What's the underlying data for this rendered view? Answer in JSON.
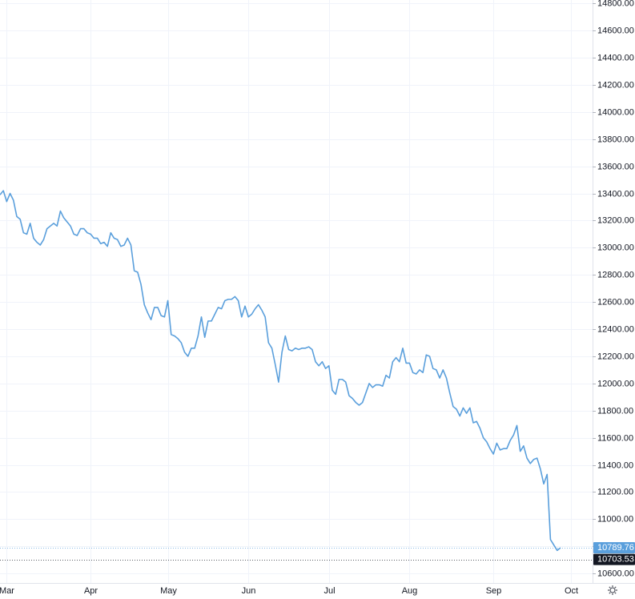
{
  "chart_data": {
    "type": "line",
    "categories": [
      null,
      null,
      "Mar",
      null,
      null,
      null,
      null,
      null,
      null,
      null,
      null,
      null,
      null,
      null,
      null,
      null,
      null,
      null,
      null,
      null,
      null,
      null,
      null,
      null,
      null,
      null,
      null,
      "Apr",
      null,
      null,
      null,
      null,
      null,
      null,
      null,
      null,
      null,
      null,
      null,
      null,
      null,
      null,
      null,
      null,
      null,
      null,
      null,
      null,
      null,
      null,
      "May",
      null,
      null,
      null,
      null,
      null,
      null,
      null,
      null,
      null,
      null,
      null,
      null,
      null,
      null,
      null,
      null,
      null,
      null,
      null,
      null,
      null,
      null,
      null,
      "Jun",
      null,
      null,
      null,
      null,
      null,
      null,
      null,
      null,
      null,
      null,
      null,
      null,
      null,
      null,
      null,
      null,
      null,
      null,
      null,
      null,
      null,
      null,
      null,
      "Jul",
      null,
      null,
      null,
      null,
      null,
      null,
      null,
      null,
      null,
      null,
      null,
      null,
      null,
      null,
      null,
      null,
      null,
      null,
      null,
      null,
      null,
      null,
      null,
      "Aug",
      null,
      null,
      null,
      null,
      null,
      null,
      null,
      null,
      null,
      null,
      null,
      null,
      null,
      null,
      null,
      null,
      null,
      null,
      null,
      null,
      null,
      null,
      null,
      null,
      "Sep",
      null,
      null,
      null,
      null,
      null,
      null,
      null,
      null,
      null,
      null,
      null,
      null,
      null,
      null,
      null,
      null,
      null,
      null,
      null,
      null,
      null,
      null,
      "Oct"
    ],
    "series": [
      {
        "color": "#5a9fdc",
        "values": [
          13390,
          13420,
          13340,
          13400,
          13350,
          13230,
          13210,
          13110,
          13100,
          13180,
          13070,
          13040,
          13020,
          13060,
          13140,
          13160,
          13180,
          13160,
          13270,
          13220,
          13190,
          13160,
          13100,
          13090,
          13140,
          13140,
          13110,
          13100,
          13070,
          13070,
          13030,
          13040,
          13010,
          13110,
          13070,
          13060,
          13010,
          13020,
          13070,
          13020,
          12830,
          12820,
          12730,
          12580,
          12520,
          12470,
          12560,
          12560,
          12500,
          12490,
          12610,
          12360,
          12350,
          12330,
          12300,
          12230,
          12200,
          12260,
          12260,
          12350,
          12490,
          12340,
          12460,
          12460,
          12510,
          12560,
          12550,
          12610,
          12620,
          12620,
          12640,
          12610,
          12490,
          12570,
          12490,
          12510,
          12550,
          12580,
          12540,
          12490,
          12300,
          12260,
          12140,
          12010,
          12230,
          12350,
          12250,
          12240,
          12260,
          12250,
          12260,
          12260,
          12270,
          12250,
          12160,
          12130,
          12160,
          12110,
          12130,
          11950,
          11920,
          12030,
          12030,
          12010,
          11910,
          11890,
          11860,
          11840,
          11860,
          11930,
          12000,
          11970,
          11990,
          11990,
          11980,
          12060,
          12040,
          12160,
          12190,
          12160,
          12260,
          12150,
          12150,
          12080,
          12070,
          12100,
          12080,
          12210,
          12200,
          12110,
          12100,
          12040,
          12100,
          12040,
          11930,
          11830,
          11810,
          11760,
          11820,
          11780,
          11820,
          11710,
          11720,
          11670,
          11600,
          11570,
          11520,
          11480,
          11560,
          11510,
          11520,
          11520,
          11580,
          11620,
          11690,
          11500,
          11540,
          11450,
          11410,
          11440,
          11450,
          11370,
          11260,
          11330,
          10850,
          10810,
          10770,
          10789.76,
          null,
          null,
          null
        ]
      }
    ],
    "ylim": [
      10530,
      14825
    ],
    "yticks": [
      {
        "value": 10600,
        "label": "10600.00"
      },
      {
        "value": 10800,
        "label": "10800.00"
      },
      {
        "value": 11000,
        "label": "11000.00"
      },
      {
        "value": 11200,
        "label": "11200.00"
      },
      {
        "value": 11400,
        "label": "11400.00"
      },
      {
        "value": 11600,
        "label": "11600.00"
      },
      {
        "value": 11800,
        "label": "11800.00"
      },
      {
        "value": 12000,
        "label": "12000.00"
      },
      {
        "value": 12200,
        "label": "12200.00"
      },
      {
        "value": 12400,
        "label": "12400.00"
      },
      {
        "value": 12600,
        "label": "12600.00"
      },
      {
        "value": 12800,
        "label": "12800.00"
      },
      {
        "value": 13000,
        "label": "13000.00"
      },
      {
        "value": 13200,
        "label": "13200.00"
      },
      {
        "value": 13400,
        "label": "13400.00"
      },
      {
        "value": 13600,
        "label": "13600.00"
      },
      {
        "value": 13800,
        "label": "13800.00"
      },
      {
        "value": 14000,
        "label": "14000.00"
      },
      {
        "value": 14200,
        "label": "14200.00"
      },
      {
        "value": 14400,
        "label": "14400.00"
      },
      {
        "value": 14600,
        "label": "14600.00"
      },
      {
        "value": 14800,
        "label": "14800.00"
      }
    ],
    "grid": true,
    "price_labels": [
      {
        "value": 10789.76,
        "color": "#5a9fdc"
      },
      {
        "value": 10703.53,
        "color": "#131722"
      }
    ]
  }
}
